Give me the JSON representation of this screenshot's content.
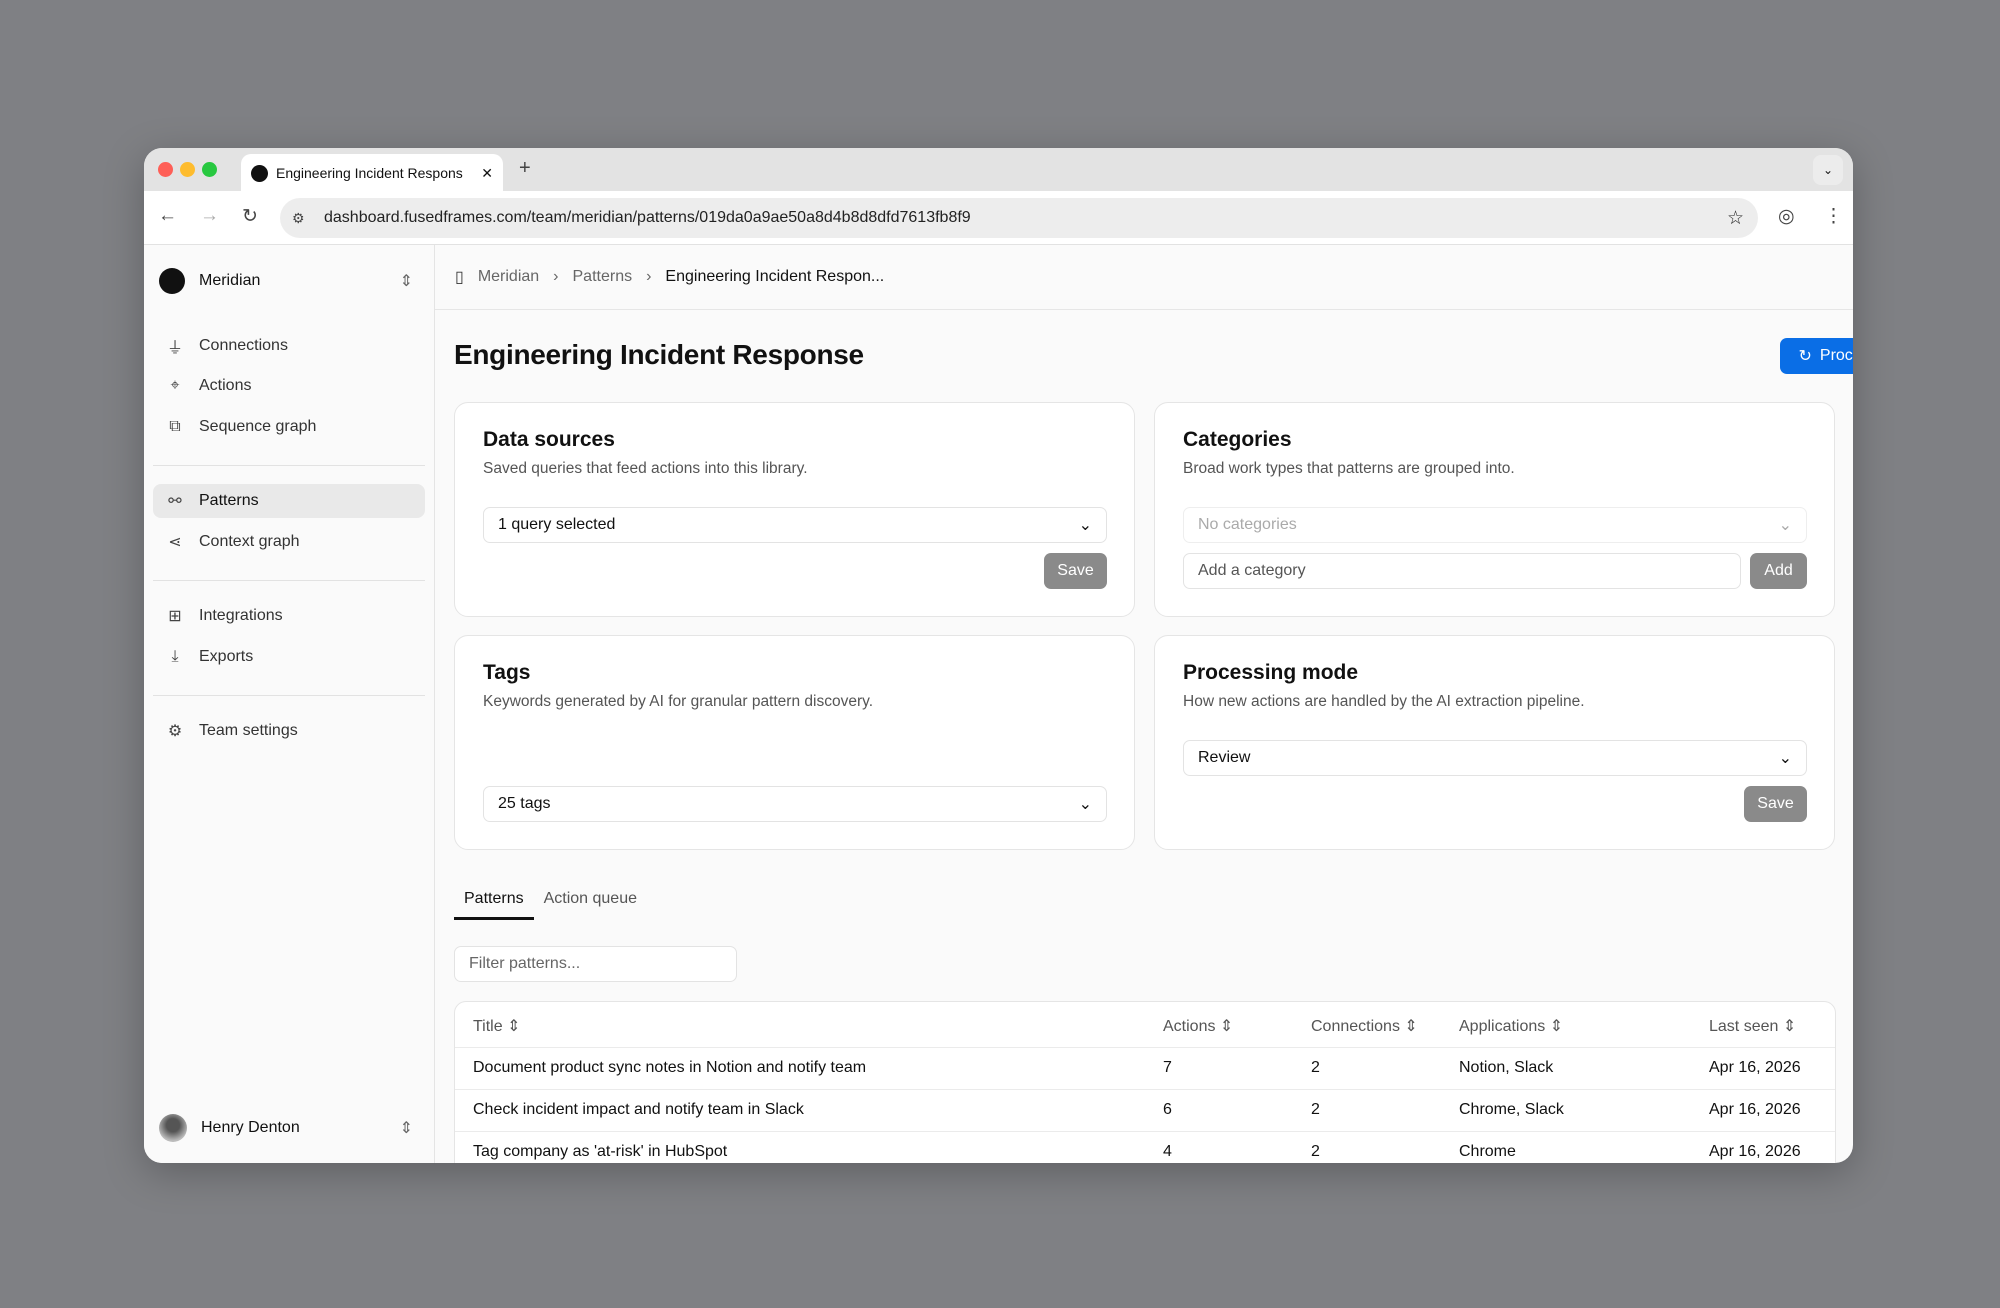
{
  "browser": {
    "tab_title": "Engineering Incident Respons",
    "url": "dashboard.fusedframes.com/team/meridian/patterns/019da0a9ae50a8d4b8d8dfd7613fb8f9"
  },
  "sidebar": {
    "team": "Meridian",
    "groups": [
      [
        {
          "label": "Connections",
          "icon": "plug-icon"
        },
        {
          "label": "Actions",
          "icon": "cursor-click-icon"
        },
        {
          "label": "Sequence graph",
          "icon": "sequence-icon"
        }
      ],
      [
        {
          "label": "Patterns",
          "icon": "patterns-icon",
          "active": true
        },
        {
          "label": "Context graph",
          "icon": "share-icon"
        }
      ],
      [
        {
          "label": "Integrations",
          "icon": "blocks-icon"
        },
        {
          "label": "Exports",
          "icon": "download-icon"
        }
      ],
      [
        {
          "label": "Team settings",
          "icon": "gear-icon"
        }
      ]
    ],
    "user": "Henry Denton"
  },
  "breadcrumb": [
    "Meridian",
    "Patterns",
    "Engineering Incident Respon..."
  ],
  "page": {
    "title": "Engineering Incident Response",
    "process_label": "Process now"
  },
  "cards": {
    "data_sources": {
      "title": "Data sources",
      "desc": "Saved queries that feed actions into this library.",
      "select": "1 query selected",
      "save": "Save"
    },
    "categories": {
      "title": "Categories",
      "desc": "Broad work types that patterns are grouped into.",
      "select": "No categories",
      "input_placeholder": "Add a category",
      "add": "Add"
    },
    "tags": {
      "title": "Tags",
      "desc": "Keywords generated by AI for granular pattern discovery.",
      "select": "25 tags"
    },
    "processing": {
      "title": "Processing mode",
      "desc": "How new actions are handled by the AI extraction pipeline.",
      "select": "Review",
      "save": "Save"
    }
  },
  "tabs": [
    "Patterns",
    "Action queue"
  ],
  "filter_placeholder": "Filter patterns...",
  "table": {
    "headers": [
      "Title",
      "Actions",
      "Connections",
      "Applications",
      "Last seen"
    ],
    "rows": [
      [
        "Document product sync notes in Notion and notify team",
        "7",
        "2",
        "Notion, Slack",
        "Apr 16, 2026"
      ],
      [
        "Check incident impact and notify team in Slack",
        "6",
        "2",
        "Chrome, Slack",
        "Apr 16, 2026"
      ],
      [
        "Tag company as 'at-risk' in HubSpot",
        "4",
        "2",
        "Chrome",
        "Apr 16, 2026"
      ]
    ]
  },
  "colors": {
    "primary": "#0a6ee6"
  }
}
